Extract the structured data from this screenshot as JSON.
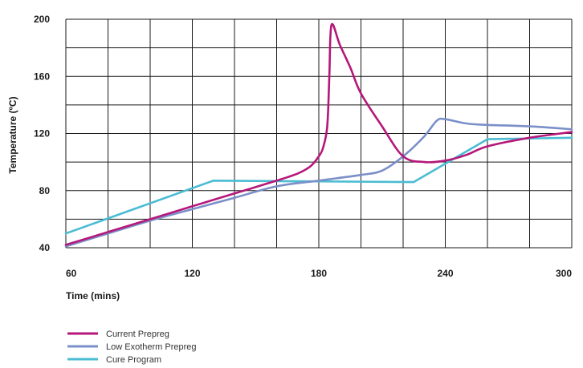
{
  "chart_data": {
    "type": "line",
    "title": "",
    "xlabel": "Time (mins)",
    "ylabel": "Temperature (ºC)",
    "xlim": [
      60,
      300
    ],
    "ylim": [
      40,
      200
    ],
    "xticks": [
      60,
      120,
      180,
      240,
      300
    ],
    "yticks": [
      40,
      80,
      120,
      160,
      200
    ],
    "xgrid_step": 20,
    "ygrid_step": 20,
    "grid": true,
    "legend_position": "bottom-left",
    "series": [
      {
        "name": "Current Prepreg",
        "color": "#b5177a",
        "points": [
          [
            60,
            42
          ],
          [
            80,
            51
          ],
          [
            100,
            60
          ],
          [
            120,
            69
          ],
          [
            140,
            78
          ],
          [
            160,
            87
          ],
          [
            170,
            92
          ],
          [
            176,
            97
          ],
          [
            180,
            104
          ],
          [
            182,
            110
          ],
          [
            184,
            125
          ],
          [
            185,
            160
          ],
          [
            186,
            196
          ],
          [
            190,
            182
          ],
          [
            195,
            166
          ],
          [
            200,
            148
          ],
          [
            210,
            125
          ],
          [
            220,
            104
          ],
          [
            230,
            100
          ],
          [
            240,
            101
          ],
          [
            250,
            105
          ],
          [
            260,
            111
          ],
          [
            280,
            117
          ],
          [
            300,
            121
          ]
        ]
      },
      {
        "name": "Low Exotherm Prepreg",
        "color": "#7b8fc8",
        "points": [
          [
            60,
            41
          ],
          [
            80,
            50
          ],
          [
            100,
            59
          ],
          [
            120,
            67
          ],
          [
            140,
            75
          ],
          [
            160,
            83
          ],
          [
            180,
            87
          ],
          [
            200,
            91
          ],
          [
            210,
            94
          ],
          [
            220,
            104
          ],
          [
            230,
            118
          ],
          [
            236,
            129
          ],
          [
            240,
            130
          ],
          [
            250,
            127
          ],
          [
            260,
            126
          ],
          [
            280,
            125
          ],
          [
            300,
            123
          ]
        ]
      },
      {
        "name": "Cure Program",
        "color": "#4bbcd3",
        "points": [
          [
            60,
            50
          ],
          [
            130,
            87
          ],
          [
            225,
            86
          ],
          [
            260,
            116
          ],
          [
            300,
            117
          ]
        ]
      }
    ]
  }
}
